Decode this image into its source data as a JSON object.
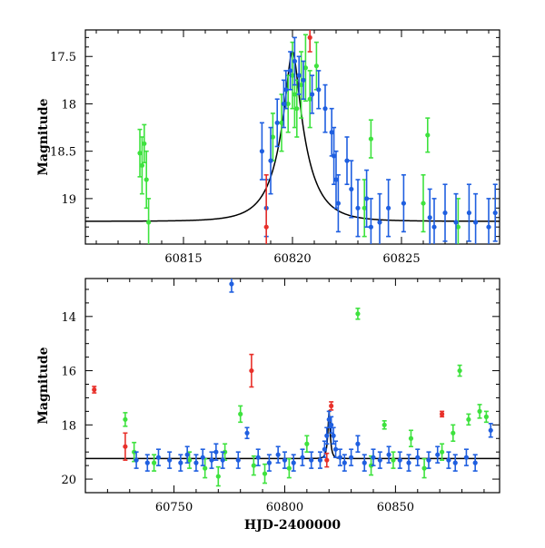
{
  "colors": {
    "blue": "#1f5fe0",
    "green": "#3ee23e",
    "red": "#e8302a",
    "model": "#000000"
  },
  "chart_data": [
    {
      "type": "scatter",
      "xlim": [
        60810.5,
        60829.5
      ],
      "ylim": [
        19.48,
        17.22
      ],
      "y_reversed": true,
      "xticks": [
        60815,
        60820,
        60825
      ],
      "xtick_labels": [
        "60815",
        "60820",
        "60825"
      ],
      "yticks": [
        17.5,
        18,
        18.5,
        19
      ],
      "ytick_labels": [
        "17.5",
        "18",
        "18.5",
        "19"
      ],
      "ylabel": "Magnitude",
      "xlabel": "",
      "model_curve": {
        "baseline": 19.24,
        "peak": 17.45,
        "t0": 60820.0,
        "tE": 1.3
      },
      "series": [
        {
          "color": "green",
          "points": [
            [
              60813.0,
              18.52,
              0.25
            ],
            [
              60813.1,
              18.65,
              0.3
            ],
            [
              60813.2,
              18.42,
              0.2
            ],
            [
              60813.3,
              18.8,
              0.3
            ],
            [
              60813.4,
              19.25,
              0.25
            ],
            [
              60819.1,
              18.35,
              0.25
            ],
            [
              60819.5,
              18.2,
              0.3
            ],
            [
              60819.8,
              18.0,
              0.3
            ],
            [
              60820.0,
              17.7,
              0.35
            ],
            [
              60820.1,
              17.9,
              0.35
            ],
            [
              60820.2,
              18.05,
              0.3
            ],
            [
              60820.4,
              17.8,
              0.35
            ],
            [
              60820.6,
              17.62,
              0.35
            ],
            [
              60820.8,
              17.95,
              0.3
            ],
            [
              60821.1,
              17.6,
              0.25
            ],
            [
              60823.3,
              19.1,
              0.3
            ],
            [
              60823.6,
              18.37,
              0.2
            ],
            [
              60826.2,
              18.33,
              0.18
            ],
            [
              60826.0,
              19.05,
              0.3
            ],
            [
              60827.6,
              19.3,
              0.3
            ]
          ]
        },
        {
          "color": "blue",
          "points": [
            [
              60818.6,
              18.5,
              0.3
            ],
            [
              60818.8,
              19.1,
              0.3
            ],
            [
              60819.0,
              18.6,
              0.35
            ],
            [
              60819.3,
              18.2,
              0.25
            ],
            [
              60819.6,
              18.0,
              0.25
            ],
            [
              60819.7,
              17.85,
              0.2
            ],
            [
              60819.9,
              17.65,
              0.2
            ],
            [
              60820.1,
              17.55,
              0.25
            ],
            [
              60820.3,
              17.7,
              0.2
            ],
            [
              60820.5,
              17.75,
              0.2
            ],
            [
              60820.9,
              17.9,
              0.2
            ],
            [
              60821.2,
              17.85,
              0.2
            ],
            [
              60821.5,
              18.05,
              0.25
            ],
            [
              60821.8,
              18.3,
              0.25
            ],
            [
              60821.9,
              18.55,
              0.3
            ],
            [
              60822.0,
              18.8,
              0.3
            ],
            [
              60822.1,
              19.05,
              0.3
            ],
            [
              60822.5,
              18.6,
              0.25
            ],
            [
              60822.7,
              18.9,
              0.3
            ],
            [
              60823.0,
              19.1,
              0.3
            ],
            [
              60823.4,
              19.0,
              0.3
            ],
            [
              60823.6,
              19.3,
              0.3
            ],
            [
              60824.0,
              19.25,
              0.3
            ],
            [
              60824.4,
              19.1,
              0.3
            ],
            [
              60825.1,
              19.05,
              0.3
            ],
            [
              60826.3,
              19.2,
              0.3
            ],
            [
              60826.5,
              19.3,
              0.3
            ],
            [
              60827.0,
              19.15,
              0.3
            ],
            [
              60827.5,
              19.25,
              0.3
            ],
            [
              60828.1,
              19.15,
              0.3
            ],
            [
              60828.4,
              19.25,
              0.3
            ],
            [
              60829.0,
              19.3,
              0.3
            ],
            [
              60829.3,
              19.15,
              0.3
            ]
          ]
        },
        {
          "color": "red",
          "points": [
            [
              60818.8,
              19.3,
              0.55
            ],
            [
              60820.8,
              17.3,
              0.15
            ]
          ]
        }
      ]
    },
    {
      "type": "scatter",
      "xlim": [
        60710,
        60897
      ],
      "ylim": [
        20.5,
        12.6
      ],
      "y_reversed": true,
      "xticks": [
        60750,
        60800,
        60850
      ],
      "xtick_labels": [
        "60750",
        "60800",
        "60850"
      ],
      "yticks": [
        14,
        16,
        18,
        20
      ],
      "ytick_labels": [
        "14",
        "16",
        "18",
        "20"
      ],
      "ylabel": "Magnitude",
      "xlabel": "HJD-2400000",
      "model_curve": {
        "baseline": 19.24,
        "peak": 17.45,
        "t0": 60820.0,
        "tE": 1.3
      },
      "series": [
        {
          "color": "green",
          "points": [
            [
              60728,
              17.8,
              0.25
            ],
            [
              60732,
              19.0,
              0.35
            ],
            [
              60741,
              19.4,
              0.3
            ],
            [
              60757,
              19.3,
              0.3
            ],
            [
              60764,
              19.6,
              0.35
            ],
            [
              60770,
              19.9,
              0.35
            ],
            [
              60773,
              19.0,
              0.3
            ],
            [
              60780,
              17.6,
              0.3
            ],
            [
              60786,
              19.5,
              0.35
            ],
            [
              60791,
              19.8,
              0.35
            ],
            [
              60802,
              19.6,
              0.35
            ],
            [
              60810,
              18.7,
              0.3
            ],
            [
              60833,
              13.9,
              0.2
            ],
            [
              60839,
              19.5,
              0.35
            ],
            [
              60845,
              18.0,
              0.15
            ],
            [
              60849,
              19.3,
              0.3
            ],
            [
              60857,
              18.5,
              0.3
            ],
            [
              60863,
              19.6,
              0.35
            ],
            [
              60871,
              19.0,
              0.3
            ],
            [
              60876,
              18.3,
              0.3
            ],
            [
              60879,
              16.0,
              0.2
            ],
            [
              60883,
              17.8,
              0.2
            ],
            [
              60888,
              17.5,
              0.25
            ],
            [
              60891,
              17.7,
              0.2
            ]
          ]
        },
        {
          "color": "blue",
          "points": [
            [
              60733,
              19.3,
              0.3
            ],
            [
              60738,
              19.4,
              0.3
            ],
            [
              60743,
              19.2,
              0.3
            ],
            [
              60748,
              19.3,
              0.3
            ],
            [
              60753,
              19.4,
              0.3
            ],
            [
              60756,
              19.1,
              0.3
            ],
            [
              60760,
              19.4,
              0.3
            ],
            [
              60763,
              19.2,
              0.3
            ],
            [
              60767,
              19.3,
              0.3
            ],
            [
              60769,
              19.0,
              0.3
            ],
            [
              60772,
              19.3,
              0.3
            ],
            [
              60776,
              12.8,
              0.3
            ],
            [
              60779,
              19.3,
              0.3
            ],
            [
              60783,
              18.3,
              0.2
            ],
            [
              60788,
              19.2,
              0.3
            ],
            [
              60793,
              19.4,
              0.3
            ],
            [
              60797,
              19.1,
              0.3
            ],
            [
              60800,
              19.3,
              0.3
            ],
            [
              60804,
              19.4,
              0.3
            ],
            [
              60808,
              19.2,
              0.3
            ],
            [
              60812,
              19.3,
              0.3
            ],
            [
              60816,
              19.3,
              0.3
            ],
            [
              60818,
              18.9,
              0.3
            ],
            [
              60819,
              18.4,
              0.3
            ],
            [
              60820,
              17.8,
              0.3
            ],
            [
              60821,
              18.0,
              0.3
            ],
            [
              60822,
              18.4,
              0.3
            ],
            [
              60823,
              18.9,
              0.3
            ],
            [
              60825,
              19.2,
              0.3
            ],
            [
              60827,
              19.4,
              0.3
            ],
            [
              60830,
              19.2,
              0.3
            ],
            [
              60833,
              18.7,
              0.3
            ],
            [
              60836,
              19.4,
              0.3
            ],
            [
              60840,
              19.2,
              0.3
            ],
            [
              60843,
              19.3,
              0.3
            ],
            [
              60847,
              19.1,
              0.3
            ],
            [
              60852,
              19.3,
              0.3
            ],
            [
              60856,
              19.4,
              0.3
            ],
            [
              60860,
              19.2,
              0.3
            ],
            [
              60865,
              19.3,
              0.3
            ],
            [
              60869,
              19.1,
              0.3
            ],
            [
              60874,
              19.3,
              0.3
            ],
            [
              60877,
              19.4,
              0.3
            ],
            [
              60882,
              19.2,
              0.3
            ],
            [
              60886,
              19.4,
              0.3
            ],
            [
              60893,
              18.2,
              0.25
            ]
          ]
        },
        {
          "color": "red",
          "points": [
            [
              60714,
              16.7,
              0.12
            ],
            [
              60728,
              18.8,
              0.5
            ],
            [
              60785,
              16.0,
              0.6
            ],
            [
              60819,
              19.3,
              0.25
            ],
            [
              60821,
              17.3,
              0.15
            ],
            [
              60871,
              17.6,
              0.1
            ]
          ]
        }
      ]
    }
  ]
}
